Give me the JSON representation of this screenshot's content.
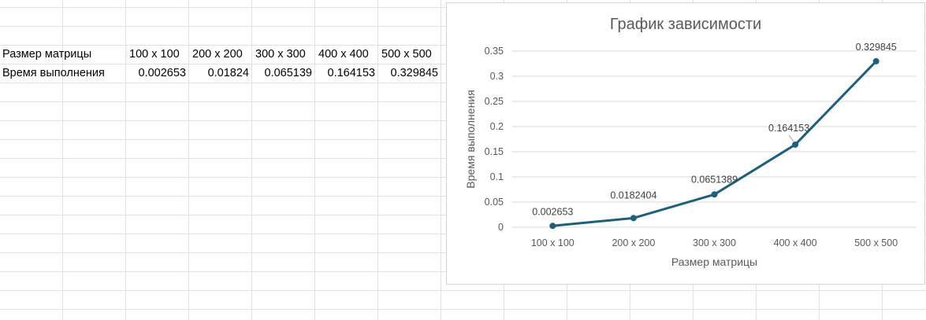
{
  "sheet": {
    "row_labels": [
      "Размер матрицы",
      "Время выполнения"
    ],
    "sizes": [
      "100 x 100",
      "200 x 200",
      "300 x 300",
      "400 x 400",
      "500 x 500"
    ],
    "times": [
      "0.002653",
      "0.01824",
      "0.065139",
      "0.164153",
      "0.329845"
    ]
  },
  "chart_data": {
    "type": "line",
    "title": "График зависимости",
    "xlabel": "Размер матрицы",
    "ylabel": "Время выполнения",
    "categories": [
      "100 x 100",
      "200 x 200",
      "300 x 300",
      "400 x 400",
      "500 x 500"
    ],
    "series": [
      {
        "values": [
          0.002653,
          0.0182404,
          0.0651389,
          0.164153,
          0.329845
        ],
        "data_labels": [
          "0.002653",
          "0.0182404",
          "0.0651389",
          "0.164153",
          "0.329845"
        ],
        "color": "#1e5f79"
      }
    ],
    "ylim": [
      0,
      0.35
    ],
    "yticks": [
      "0",
      "0.05",
      "0.1",
      "0.15",
      "0.2",
      "0.25",
      "0.3",
      "0.35"
    ],
    "grid": true,
    "legend": "none"
  }
}
